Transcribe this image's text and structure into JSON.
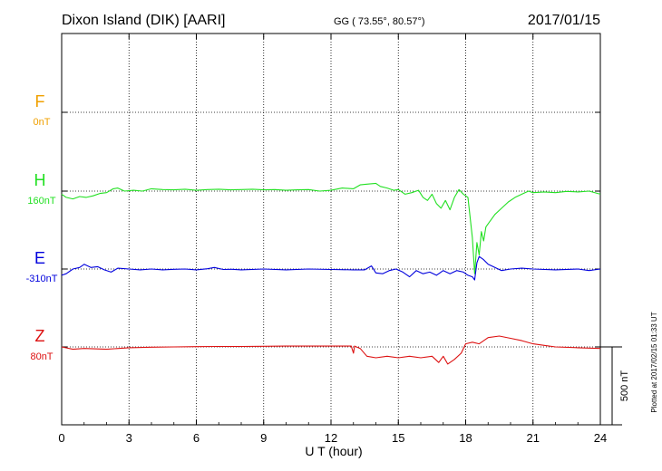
{
  "header": {
    "station": "Dixon Island (DIK)  [AARI]",
    "coords": "GG ( 73.55°,  80.57°)",
    "date": "2017/01/15"
  },
  "side_note": "Plotted at 2017/02/15 01:33 UT",
  "chart_data": {
    "type": "line",
    "title": "Dixon Island (DIK)  [AARI]",
    "xlabel": "U T (hour)",
    "xlim": [
      0,
      24
    ],
    "x_ticks": [
      0,
      3,
      6,
      9,
      12,
      15,
      18,
      21,
      24
    ],
    "grid": true,
    "scale_bar": {
      "label": "500 nT",
      "value_nT": 500
    },
    "series": [
      {
        "name": "F",
        "baseline_label": "0nT",
        "color": "#f0a000",
        "points": []
      },
      {
        "name": "H",
        "baseline_label": "160nT",
        "color": "#22e022",
        "points": [
          [
            0,
            -20
          ],
          [
            0.2,
            -40
          ],
          [
            0.5,
            -50
          ],
          [
            0.8,
            -35
          ],
          [
            1.1,
            -40
          ],
          [
            1.4,
            -30
          ],
          [
            1.7,
            -15
          ],
          [
            2.0,
            -10
          ],
          [
            2.3,
            15
          ],
          [
            2.5,
            20
          ],
          [
            2.8,
            0
          ],
          [
            3.2,
            5
          ],
          [
            3.6,
            0
          ],
          [
            4.0,
            15
          ],
          [
            4.5,
            10
          ],
          [
            5.0,
            8
          ],
          [
            5.5,
            12
          ],
          [
            6.0,
            5
          ],
          [
            6.5,
            10
          ],
          [
            7.0,
            12
          ],
          [
            7.5,
            8
          ],
          [
            8.0,
            10
          ],
          [
            8.5,
            12
          ],
          [
            9.0,
            8
          ],
          [
            9.5,
            10
          ],
          [
            10.0,
            5
          ],
          [
            10.5,
            8
          ],
          [
            11.0,
            10
          ],
          [
            11.5,
            0
          ],
          [
            12.0,
            5
          ],
          [
            12.5,
            20
          ],
          [
            13.0,
            15
          ],
          [
            13.3,
            40
          ],
          [
            13.6,
            45
          ],
          [
            14.0,
            50
          ],
          [
            14.2,
            30
          ],
          [
            14.5,
            20
          ],
          [
            14.8,
            5
          ],
          [
            15.0,
            10
          ],
          [
            15.3,
            -20
          ],
          [
            15.6,
            -10
          ],
          [
            15.9,
            5
          ],
          [
            16.1,
            -40
          ],
          [
            16.3,
            -60
          ],
          [
            16.5,
            -20
          ],
          [
            16.7,
            -80
          ],
          [
            16.9,
            -110
          ],
          [
            17.1,
            -60
          ],
          [
            17.3,
            -120
          ],
          [
            17.5,
            -40
          ],
          [
            17.7,
            10
          ],
          [
            17.9,
            -20
          ],
          [
            18.1,
            -40
          ],
          [
            18.3,
            -300
          ],
          [
            18.4,
            -530
          ],
          [
            18.5,
            -330
          ],
          [
            18.6,
            -410
          ],
          [
            18.7,
            -260
          ],
          [
            18.8,
            -320
          ],
          [
            18.9,
            -230
          ],
          [
            19.0,
            -210
          ],
          [
            19.3,
            -150
          ],
          [
            19.6,
            -110
          ],
          [
            19.9,
            -70
          ],
          [
            20.2,
            -40
          ],
          [
            20.5,
            -20
          ],
          [
            20.8,
            0
          ],
          [
            21.0,
            -10
          ],
          [
            21.5,
            -5
          ],
          [
            22.0,
            -10
          ],
          [
            22.5,
            -2
          ],
          [
            23.0,
            -5
          ],
          [
            23.5,
            0
          ],
          [
            24.0,
            -20
          ]
        ]
      },
      {
        "name": "E",
        "baseline_label": "-310nT",
        "color": "#0000dd",
        "points": [
          [
            0,
            -40
          ],
          [
            0.2,
            -30
          ],
          [
            0.5,
            0
          ],
          [
            0.8,
            10
          ],
          [
            1.0,
            30
          ],
          [
            1.3,
            10
          ],
          [
            1.6,
            15
          ],
          [
            1.9,
            -5
          ],
          [
            2.2,
            -20
          ],
          [
            2.5,
            5
          ],
          [
            3.0,
            0
          ],
          [
            3.5,
            -5
          ],
          [
            4.0,
            0
          ],
          [
            4.5,
            -5
          ],
          [
            5.0,
            -2
          ],
          [
            5.5,
            0
          ],
          [
            6.0,
            -5
          ],
          [
            6.5,
            2
          ],
          [
            6.8,
            10
          ],
          [
            7.2,
            -3
          ],
          [
            7.6,
            -2
          ],
          [
            8.0,
            -5
          ],
          [
            9.0,
            0
          ],
          [
            10.0,
            -5
          ],
          [
            11.0,
            0
          ],
          [
            12.0,
            -3
          ],
          [
            13.0,
            -5
          ],
          [
            13.5,
            -5
          ],
          [
            13.8,
            20
          ],
          [
            14.0,
            -25
          ],
          [
            14.3,
            -30
          ],
          [
            14.6,
            -10
          ],
          [
            14.9,
            0
          ],
          [
            15.2,
            -20
          ],
          [
            15.5,
            -50
          ],
          [
            15.8,
            -10
          ],
          [
            16.1,
            -30
          ],
          [
            16.4,
            -20
          ],
          [
            16.7,
            -40
          ],
          [
            17.0,
            -10
          ],
          [
            17.3,
            -30
          ],
          [
            17.6,
            -10
          ],
          [
            17.9,
            -20
          ],
          [
            18.1,
            -40
          ],
          [
            18.3,
            -50
          ],
          [
            18.4,
            -70
          ],
          [
            18.5,
            40
          ],
          [
            18.6,
            80
          ],
          [
            18.8,
            60
          ],
          [
            19.0,
            30
          ],
          [
            19.3,
            10
          ],
          [
            19.6,
            -10
          ],
          [
            20.0,
            0
          ],
          [
            20.5,
            5
          ],
          [
            21.0,
            0
          ],
          [
            22.0,
            -5
          ],
          [
            23.0,
            0
          ],
          [
            23.5,
            -10
          ],
          [
            24.0,
            0
          ]
        ]
      },
      {
        "name": "Z",
        "baseline_label": "80nT",
        "color": "#dd1111",
        "points": [
          [
            0,
            0
          ],
          [
            0.5,
            -15
          ],
          [
            1.0,
            -10
          ],
          [
            2.0,
            -15
          ],
          [
            3.0,
            -5
          ],
          [
            4.0,
            -2
          ],
          [
            5.0,
            0
          ],
          [
            6.0,
            2
          ],
          [
            7.0,
            3
          ],
          [
            8.0,
            3
          ],
          [
            9.0,
            4
          ],
          [
            10.0,
            5
          ],
          [
            11.0,
            5
          ],
          [
            12.0,
            5
          ],
          [
            12.9,
            5
          ],
          [
            13.0,
            -40
          ],
          [
            13.05,
            5
          ],
          [
            13.3,
            -10
          ],
          [
            13.6,
            -60
          ],
          [
            14.0,
            -70
          ],
          [
            14.5,
            -60
          ],
          [
            15.0,
            -70
          ],
          [
            15.5,
            -60
          ],
          [
            16.0,
            -70
          ],
          [
            16.5,
            -60
          ],
          [
            16.8,
            -100
          ],
          [
            17.0,
            -60
          ],
          [
            17.2,
            -110
          ],
          [
            17.5,
            -80
          ],
          [
            17.8,
            -40
          ],
          [
            18.0,
            20
          ],
          [
            18.3,
            30
          ],
          [
            18.6,
            20
          ],
          [
            19.0,
            60
          ],
          [
            19.5,
            70
          ],
          [
            20.0,
            55
          ],
          [
            20.5,
            40
          ],
          [
            21.0,
            20
          ],
          [
            21.5,
            10
          ],
          [
            22.0,
            0
          ],
          [
            23.0,
            -5
          ],
          [
            24.0,
            -10
          ]
        ]
      }
    ]
  }
}
